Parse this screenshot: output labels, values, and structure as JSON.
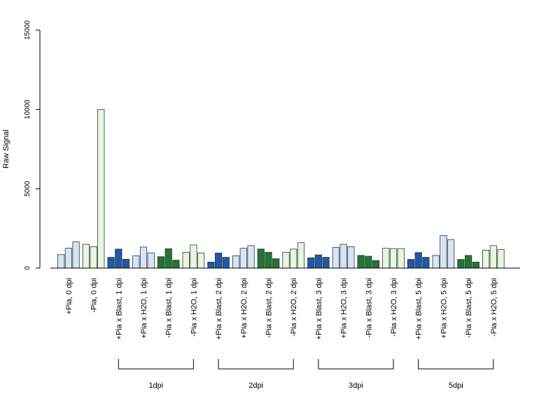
{
  "chart_data": {
    "type": "bar",
    "title": "",
    "xlabel": "",
    "ylabel": "Raw Signal",
    "ylim": [
      0,
      15000
    ],
    "yticks": [
      0,
      5000,
      10000,
      15000
    ],
    "grid": false,
    "legend": "none",
    "categories": [
      {
        "label": "+Pia, 0 dpi",
        "color": "#d6e4f7",
        "values": [
          850,
          1250,
          1650
        ]
      },
      {
        "label": "-Pia, 0 dpi",
        "color": "#e6f7e1",
        "values": [
          1500,
          1350,
          10000
        ]
      },
      {
        "label": "+Pia x Blast, 1 dpi",
        "color": "#1c5aa8",
        "values": [
          680,
          1200,
          560
        ]
      },
      {
        "label": "+Pia x H2O, 1 dpi",
        "color": "#d6e4f7",
        "values": [
          780,
          1330,
          960
        ]
      },
      {
        "label": "-Pia x Blast, 1 dpi",
        "color": "#1f7734",
        "values": [
          720,
          1220,
          500
        ]
      },
      {
        "label": "-Pia x H2O, 1 dpi",
        "color": "#e6f7e1",
        "values": [
          1000,
          1460,
          950
        ]
      },
      {
        "label": "+Pia x Blast, 2 dpi",
        "color": "#1c5aa8",
        "values": [
          380,
          950,
          680
        ]
      },
      {
        "label": "+Pia x H2O, 2 dpi",
        "color": "#d6e4f7",
        "values": [
          780,
          1250,
          1420
        ]
      },
      {
        "label": "-Pia x Blast, 2 dpi",
        "color": "#1f7734",
        "values": [
          1200,
          1000,
          590
        ]
      },
      {
        "label": "-Pia x H2O, 2 dpi",
        "color": "#e6f7e1",
        "values": [
          1000,
          1200,
          1600
        ]
      },
      {
        "label": "+Pia x Blast, 3 dpi",
        "color": "#1c5aa8",
        "values": [
          650,
          830,
          680
        ]
      },
      {
        "label": "+Pia x H2O, 3 dpi",
        "color": "#d6e4f7",
        "values": [
          1300,
          1500,
          1350
        ]
      },
      {
        "label": "-Pia x Blast, 3 dpi",
        "color": "#1f7734",
        "values": [
          800,
          750,
          480
        ]
      },
      {
        "label": "-Pia x H2O, 3 dpi",
        "color": "#e6f7e1",
        "values": [
          1250,
          1230,
          1230
        ]
      },
      {
        "label": "+Pia x Blast, 5 dpi",
        "color": "#1c5aa8",
        "values": [
          550,
          980,
          680
        ]
      },
      {
        "label": "+Pia x H2O, 5 dpi",
        "color": "#d6e4f7",
        "values": [
          800,
          2050,
          1800
        ]
      },
      {
        "label": "-Pia x Blast, 5 dpi",
        "color": "#1f7734",
        "values": [
          550,
          800,
          380
        ]
      },
      {
        "label": "-Pia x H2O, 5 dpi",
        "color": "#e6f7e1",
        "values": [
          1130,
          1420,
          1170
        ]
      }
    ],
    "groups": [
      {
        "label": "1dpi",
        "first_category": 2,
        "last_category": 5
      },
      {
        "label": "2dpi",
        "first_category": 6,
        "last_category": 9
      },
      {
        "label": "3dpi",
        "first_category": 10,
        "last_category": 13
      },
      {
        "label": "5dpi",
        "first_category": 14,
        "last_category": 17
      }
    ]
  }
}
